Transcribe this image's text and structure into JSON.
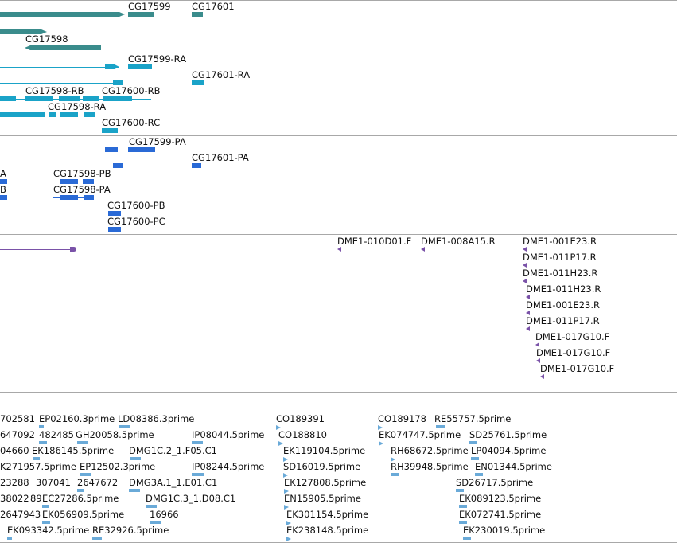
{
  "tracks": {
    "genes": {
      "color": "#3a8c8c",
      "labels": [
        "CG17599",
        "CG17601",
        "CG17598"
      ]
    },
    "transcripts": {
      "color": "#1aa3c8",
      "labels": [
        "CG17599-RA",
        "CG17601-RA",
        "CG17598-RB",
        "CG17600-RB",
        "CG17598-RA",
        "CG17600-RC"
      ]
    },
    "proteins": {
      "color": "#2a6ad6",
      "labels": [
        "CG17599-PA",
        "CG17601-PA",
        "A",
        "CG17598-PB",
        "B",
        "CG17598-PA",
        "CG17600-PB",
        "CG17600-PC"
      ]
    },
    "bac_ends": {
      "color": "#7a52a8",
      "labels": [
        "DME1-010D01.F",
        "DME1-008A15.R",
        "DME1-001E23.R",
        "DME1-011P17.R",
        "DME1-011H23.R",
        "DME1-011H23.R",
        "DME1-001E23.R",
        "DME1-011P17.R",
        "DME1-017G10.F",
        "DME1-017G10.F",
        "DME1-017G10.F"
      ]
    },
    "ests": {
      "color": "#6aaad8",
      "labels": [
        "702581",
        "EP02160.3prime",
        "LD08386.3prime",
        "CO189391",
        "CO189178",
        "RE55757.5prime",
        "647092",
        "482485",
        "GH20058.5prime",
        "IP08044.5prime",
        "CO188810",
        "EK074747.5prime",
        "SD25761.5prime",
        "04660",
        "EK186145.5prime",
        "DMG1C.2_1.F05.C1",
        "EK119104.5prime",
        "RH68672.5prime",
        "LP04094.5prime",
        "K271957.5prime",
        "EP12502.3prime",
        "IP08244.5prime",
        "SD16019.5prime",
        "RH39948.5prime",
        "EN01344.5prime",
        "23288",
        "307041",
        "2647672",
        "DMG3A.1_1.E01.C1",
        "EK127808.5prime",
        "SD26717.5prime",
        "38022",
        "89",
        "EC27286.5prime",
        "DMG1C.3_1.D08.C1",
        "EN15905.5prime",
        "EK089123.5prime",
        "2647943",
        "EK056909.5prime",
        "16966",
        "EK301154.5prime",
        "EK072741.5prime",
        "EK093342.5prime",
        "RE32926.5prime",
        "EK238148.5prime",
        "EK230019.5prime"
      ]
    }
  }
}
